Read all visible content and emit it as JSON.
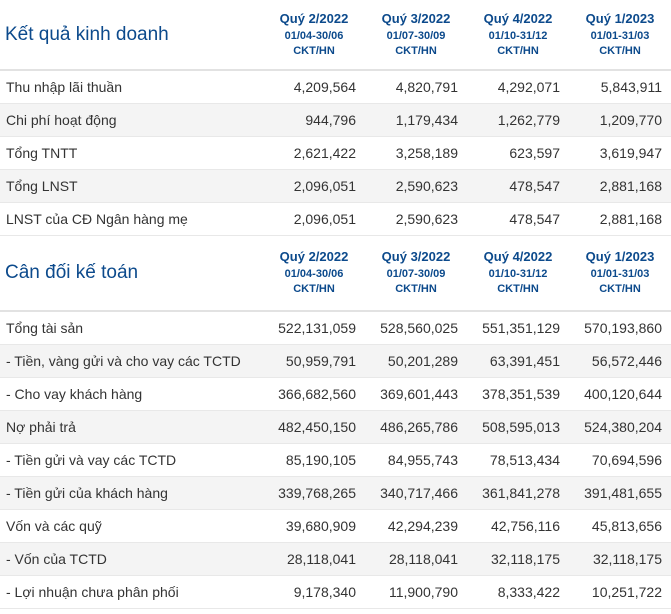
{
  "sections": [
    {
      "title": "Kết quả kinh doanh",
      "columns": [
        {
          "name": "Quý 2/2022",
          "range": "01/04-30/06",
          "unit": "CKT/HN"
        },
        {
          "name": "Quý 3/2022",
          "range": "01/07-30/09",
          "unit": "CKT/HN"
        },
        {
          "name": "Quý 4/2022",
          "range": "01/10-31/12",
          "unit": "CKT/HN"
        },
        {
          "name": "Quý 1/2023",
          "range": "01/01-31/03",
          "unit": "CKT/HN"
        }
      ],
      "rows": [
        {
          "label": "Thu nhập lãi thuần",
          "values": [
            "4,209,564",
            "4,820,791",
            "4,292,071",
            "5,843,911"
          ]
        },
        {
          "label": "Chi phí hoạt động",
          "values": [
            "944,796",
            "1,179,434",
            "1,262,779",
            "1,209,770"
          ]
        },
        {
          "label": "Tổng TNTT",
          "values": [
            "2,621,422",
            "3,258,189",
            "623,597",
            "3,619,947"
          ]
        },
        {
          "label": "Tổng LNST",
          "values": [
            "2,096,051",
            "2,590,623",
            "478,547",
            "2,881,168"
          ]
        },
        {
          "label": "LNST của CĐ Ngân hàng mẹ",
          "values": [
            "2,096,051",
            "2,590,623",
            "478,547",
            "2,881,168"
          ]
        }
      ]
    },
    {
      "title": "Cân đối kế toán",
      "columns": [
        {
          "name": "Quý 2/2022",
          "range": "01/04-30/06",
          "unit": "CKT/HN"
        },
        {
          "name": "Quý 3/2022",
          "range": "01/07-30/09",
          "unit": "CKT/HN"
        },
        {
          "name": "Quý 4/2022",
          "range": "01/10-31/12",
          "unit": "CKT/HN"
        },
        {
          "name": "Quý 1/2023",
          "range": "01/01-31/03",
          "unit": "CKT/HN"
        }
      ],
      "rows": [
        {
          "label": "Tổng tài sản",
          "values": [
            "522,131,059",
            "528,560,025",
            "551,351,129",
            "570,193,860"
          ]
        },
        {
          "label": "- Tiền, vàng gửi và cho vay các TCTD",
          "values": [
            "50,959,791",
            "50,201,289",
            "63,391,451",
            "56,572,446"
          ]
        },
        {
          "label": "- Cho vay khách hàng",
          "values": [
            "366,682,560",
            "369,601,443",
            "378,351,539",
            "400,120,644"
          ]
        },
        {
          "label": "Nợ phải trả",
          "values": [
            "482,450,150",
            "486,265,786",
            "508,595,013",
            "524,380,204"
          ]
        },
        {
          "label": "- Tiền gửi và vay các TCTD",
          "values": [
            "85,190,105",
            "84,955,743",
            "78,513,434",
            "70,694,596"
          ]
        },
        {
          "label": "- Tiền gửi của khách hàng",
          "values": [
            "339,768,265",
            "340,717,466",
            "361,841,278",
            "391,481,655"
          ]
        },
        {
          "label": "Vốn và các quỹ",
          "values": [
            "39,680,909",
            "42,294,239",
            "42,756,116",
            "45,813,656"
          ]
        },
        {
          "label": "- Vốn của TCTD",
          "values": [
            "28,118,041",
            "28,118,041",
            "32,118,175",
            "32,118,175"
          ]
        },
        {
          "label": "- Lợi nhuận chưa phân phối",
          "values": [
            "9,178,340",
            "11,900,790",
            "8,333,422",
            "10,251,722"
          ]
        }
      ]
    }
  ]
}
